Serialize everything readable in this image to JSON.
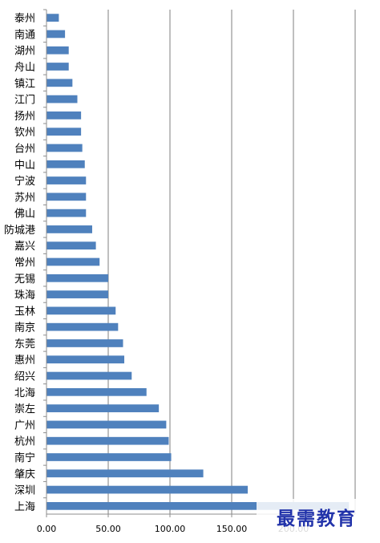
{
  "chart_data": {
    "type": "bar",
    "orientation": "horizontal",
    "categories": [
      "泰州",
      "南通",
      "湖州",
      "舟山",
      "镇江",
      "江门",
      "扬州",
      "钦州",
      "台州",
      "中山",
      "宁波",
      "苏州",
      "佛山",
      "防城港",
      "嘉兴",
      "常州",
      "无锡",
      "珠海",
      "玉林",
      "南京",
      "东莞",
      "惠州",
      "绍兴",
      "北海",
      "崇左",
      "广州",
      "杭州",
      "南宁",
      "肇庆",
      "深圳",
      "上海"
    ],
    "values": [
      10,
      15,
      18,
      18,
      21,
      25,
      28,
      28,
      29,
      31,
      32,
      32,
      32,
      37,
      40,
      43,
      50,
      50,
      56,
      58,
      62,
      63,
      69,
      81,
      91,
      97,
      99,
      101,
      127,
      163,
      245
    ],
    "xlim": [
      0,
      250
    ],
    "xticks": [
      "0.00",
      "50.00",
      "100.00",
      "150.00",
      "200.00"
    ],
    "grid": true,
    "bar_color": "#4f81bd",
    "title": "",
    "xlabel": "",
    "ylabel": ""
  },
  "watermark": {
    "text": "最需教育",
    "color": "#2233aa"
  }
}
